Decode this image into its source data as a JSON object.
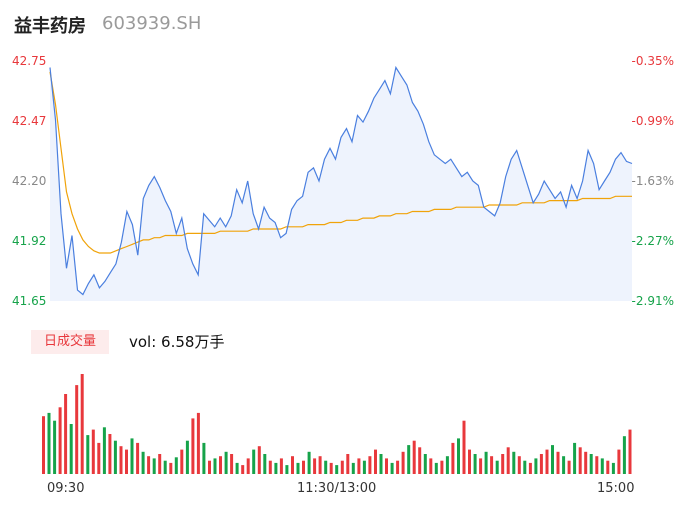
{
  "header": {
    "name": "益丰药房",
    "code": "603939.SH"
  },
  "colors": {
    "up": "#e8383c",
    "down": "#16a34a",
    "price_line": "#4a7fdf",
    "avg_line": "#f0a30a",
    "flat": "#888888"
  },
  "chart_data": [
    {
      "type": "line",
      "title": "",
      "ylim": [
        41.65,
        42.75
      ],
      "y_ticks_left": [
        "42.75",
        "42.47",
        "42.20",
        "41.92",
        "41.65"
      ],
      "y_ticks_right": [
        "-0.35%",
        "-0.99%",
        "-1.63%",
        "-2.27%",
        "-2.91%"
      ],
      "x_ticks": [
        "09:30",
        "11:30/13:00",
        "15:00"
      ],
      "series": [
        {
          "values": [
            42.72,
            42.48,
            42.05,
            41.8,
            41.95,
            41.7,
            41.68,
            41.73,
            41.77,
            41.71,
            41.74,
            41.78,
            41.82,
            41.92,
            42.06,
            42.0,
            41.86,
            42.12,
            42.18,
            42.22,
            42.17,
            42.11,
            42.06,
            41.96,
            42.03,
            41.89,
            41.82,
            41.77,
            42.05,
            42.02,
            41.99,
            42.03,
            41.99,
            42.04,
            42.16,
            42.1,
            42.2,
            42.05,
            41.98,
            42.08,
            42.03,
            42.01,
            41.94,
            41.96,
            42.07,
            42.11,
            42.13,
            42.24,
            42.26,
            42.2,
            42.3,
            42.35,
            42.3,
            42.4,
            42.44,
            42.38,
            42.5,
            42.47,
            42.52,
            42.58,
            42.62,
            42.66,
            42.6,
            42.72,
            42.68,
            42.64,
            42.56,
            42.52,
            42.46,
            42.38,
            42.32,
            42.3,
            42.28,
            42.3,
            42.26,
            42.22,
            42.24,
            42.2,
            42.18,
            42.08,
            42.06,
            42.04,
            42.1,
            42.22,
            42.3,
            42.34,
            42.26,
            42.18,
            42.1,
            42.14,
            42.2,
            42.16,
            42.12,
            42.15,
            42.08,
            42.18,
            42.12,
            42.2,
            42.34,
            42.28,
            42.16,
            42.2,
            42.24,
            42.3,
            42.33,
            42.29,
            42.28
          ],
          "x_index": [
            0,
            1,
            2,
            3,
            4,
            5,
            6,
            7,
            8,
            9,
            10,
            11,
            12,
            13,
            14,
            15,
            16,
            17,
            18,
            19,
            20,
            21,
            22,
            23,
            24,
            25,
            26,
            27,
            28,
            29,
            30,
            31,
            32,
            33,
            34,
            35,
            36,
            37,
            38,
            39,
            40,
            41,
            42,
            43,
            44,
            45,
            46,
            47,
            48,
            49,
            50,
            51,
            52,
            53,
            54,
            55,
            56,
            57,
            58,
            59,
            60,
            61,
            62,
            63,
            64,
            65,
            66,
            67,
            68,
            69,
            70,
            71,
            72,
            73,
            74,
            75,
            76,
            77,
            78,
            79,
            80,
            81,
            82,
            83,
            84,
            85,
            86,
            87,
            88,
            89,
            90,
            91,
            92,
            93,
            94,
            95,
            96,
            97,
            98,
            99,
            100,
            101,
            102,
            103,
            104,
            105,
            106
          ]
        },
        {
          "values": [
            42.7,
            42.55,
            42.35,
            42.15,
            42.05,
            41.98,
            41.93,
            41.9,
            41.88,
            41.87,
            41.87,
            41.87,
            41.88,
            41.89,
            41.9,
            41.91,
            41.92,
            41.93,
            41.93,
            41.94,
            41.94,
            41.95,
            41.95,
            41.95,
            41.95,
            41.96,
            41.96,
            41.96,
            41.96,
            41.96,
            41.96,
            41.97,
            41.97,
            41.97,
            41.97,
            41.97,
            41.97,
            41.98,
            41.98,
            41.98,
            41.98,
            41.98,
            41.98,
            41.99,
            41.99,
            41.99,
            41.99,
            42.0,
            42.0,
            42.0,
            42.0,
            42.01,
            42.01,
            42.01,
            42.02,
            42.02,
            42.02,
            42.03,
            42.03,
            42.03,
            42.04,
            42.04,
            42.04,
            42.05,
            42.05,
            42.05,
            42.06,
            42.06,
            42.06,
            42.06,
            42.07,
            42.07,
            42.07,
            42.07,
            42.08,
            42.08,
            42.08,
            42.08,
            42.08,
            42.08,
            42.09,
            42.09,
            42.09,
            42.09,
            42.09,
            42.09,
            42.1,
            42.1,
            42.1,
            42.1,
            42.1,
            42.11,
            42.11,
            42.11,
            42.11,
            42.11,
            42.11,
            42.12,
            42.12,
            42.12,
            42.12,
            42.12,
            42.12,
            42.13,
            42.13,
            42.13,
            42.13
          ]
        }
      ]
    },
    {
      "type": "bar",
      "title": "",
      "legend": "日成交量",
      "summary": "vol: 6.58万手",
      "values": [
        52,
        55,
        48,
        60,
        72,
        45,
        80,
        90,
        35,
        40,
        28,
        42,
        36,
        30,
        25,
        22,
        32,
        28,
        20,
        16,
        14,
        18,
        12,
        10,
        15,
        22,
        30,
        50,
        55,
        28,
        12,
        14,
        16,
        20,
        18,
        10,
        8,
        14,
        22,
        25,
        18,
        12,
        10,
        14,
        8,
        16,
        10,
        12,
        20,
        14,
        16,
        12,
        10,
        8,
        12,
        18,
        10,
        14,
        12,
        16,
        22,
        18,
        14,
        10,
        12,
        20,
        26,
        30,
        24,
        18,
        14,
        10,
        12,
        16,
        28,
        32,
        48,
        22,
        18,
        14,
        20,
        16,
        12,
        18,
        24,
        20,
        16,
        12,
        10,
        14,
        18,
        22,
        26,
        20,
        16,
        12,
        28,
        24,
        20,
        18,
        16,
        14,
        12,
        10,
        22,
        34,
        40
      ],
      "colors": [
        "r",
        "g",
        "g",
        "r",
        "r",
        "g",
        "r",
        "r",
        "g",
        "r",
        "r",
        "g",
        "r",
        "g",
        "r",
        "r",
        "g",
        "r",
        "g",
        "r",
        "g",
        "r",
        "g",
        "r",
        "g",
        "r",
        "g",
        "r",
        "r",
        "g",
        "r",
        "g",
        "r",
        "g",
        "r",
        "g",
        "r",
        "r",
        "g",
        "r",
        "g",
        "r",
        "g",
        "r",
        "g",
        "r",
        "g",
        "r",
        "g",
        "r",
        "r",
        "g",
        "r",
        "g",
        "r",
        "r",
        "g",
        "r",
        "g",
        "r",
        "r",
        "g",
        "r",
        "g",
        "r",
        "r",
        "g",
        "r",
        "r",
        "g",
        "r",
        "g",
        "r",
        "g",
        "r",
        "g",
        "r",
        "r",
        "g",
        "r",
        "g",
        "r",
        "g",
        "r",
        "r",
        "g",
        "r",
        "g",
        "r",
        "g",
        "r",
        "r",
        "g",
        "r",
        "g",
        "r",
        "g",
        "r",
        "r",
        "g",
        "r",
        "g",
        "r",
        "g",
        "r",
        "g",
        "r"
      ]
    }
  ]
}
